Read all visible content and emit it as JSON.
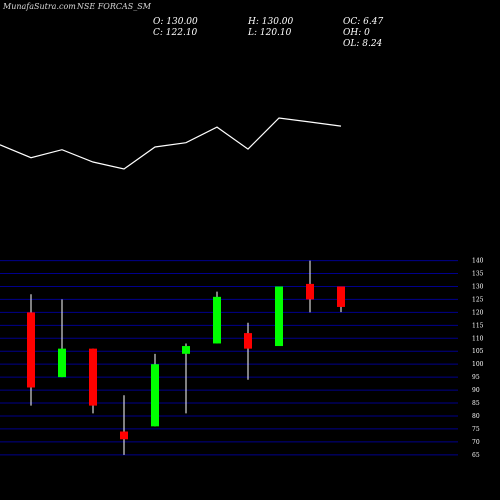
{
  "header": {
    "source": "MunafaSutra.com",
    "ticker": "NSE FORCAS_SM"
  },
  "ohlc": {
    "open": "O: 130.00",
    "close": "C: 122.10",
    "high": "H: 130.00",
    "low": "L: 120.10",
    "oc": "OC: 6.47",
    "oh": "OH: 0",
    "ol": "OL: 8.24"
  },
  "colors": {
    "background": "#000000",
    "up": "#00ff00",
    "down": "#ff0000",
    "grid": "#00008b",
    "line": "#ffffff",
    "wick": "#ffffff"
  },
  "chart_data": [
    {
      "type": "line",
      "x": [
        1,
        2,
        3,
        4,
        5,
        6,
        7,
        8,
        9,
        10,
        11,
        12
      ],
      "values": [
        90,
        42,
        72,
        26,
        0,
        82,
        98,
        156,
        74,
        190,
        175,
        160
      ]
    },
    {
      "type": "candlestick",
      "y_ticks": [
        65,
        70,
        75,
        80,
        85,
        90,
        95,
        100,
        105,
        110,
        115,
        120,
        125,
        130,
        135,
        140
      ],
      "ylim": [
        63,
        141
      ],
      "grid": true,
      "candles": [
        {
          "open": 120,
          "high": 127,
          "low": 84,
          "close": 91
        },
        {
          "open": 95,
          "high": 125,
          "low": 95,
          "close": 106
        },
        {
          "open": 106,
          "high": 106,
          "low": 81,
          "close": 84
        },
        {
          "open": 74,
          "high": 88,
          "low": 65,
          "close": 71
        },
        {
          "open": 76,
          "high": 104,
          "low": 76,
          "close": 100
        },
        {
          "open": 104,
          "high": 108,
          "low": 81,
          "close": 107
        },
        {
          "open": 108,
          "high": 128,
          "low": 108,
          "close": 126
        },
        {
          "open": 112,
          "high": 116,
          "low": 94,
          "close": 106
        },
        {
          "open": 107,
          "high": 130,
          "low": 107,
          "close": 130
        },
        {
          "open": 131,
          "high": 140,
          "low": 120,
          "close": 125
        },
        {
          "open": 130,
          "high": 130,
          "low": 120.1,
          "close": 122.1
        }
      ]
    }
  ]
}
